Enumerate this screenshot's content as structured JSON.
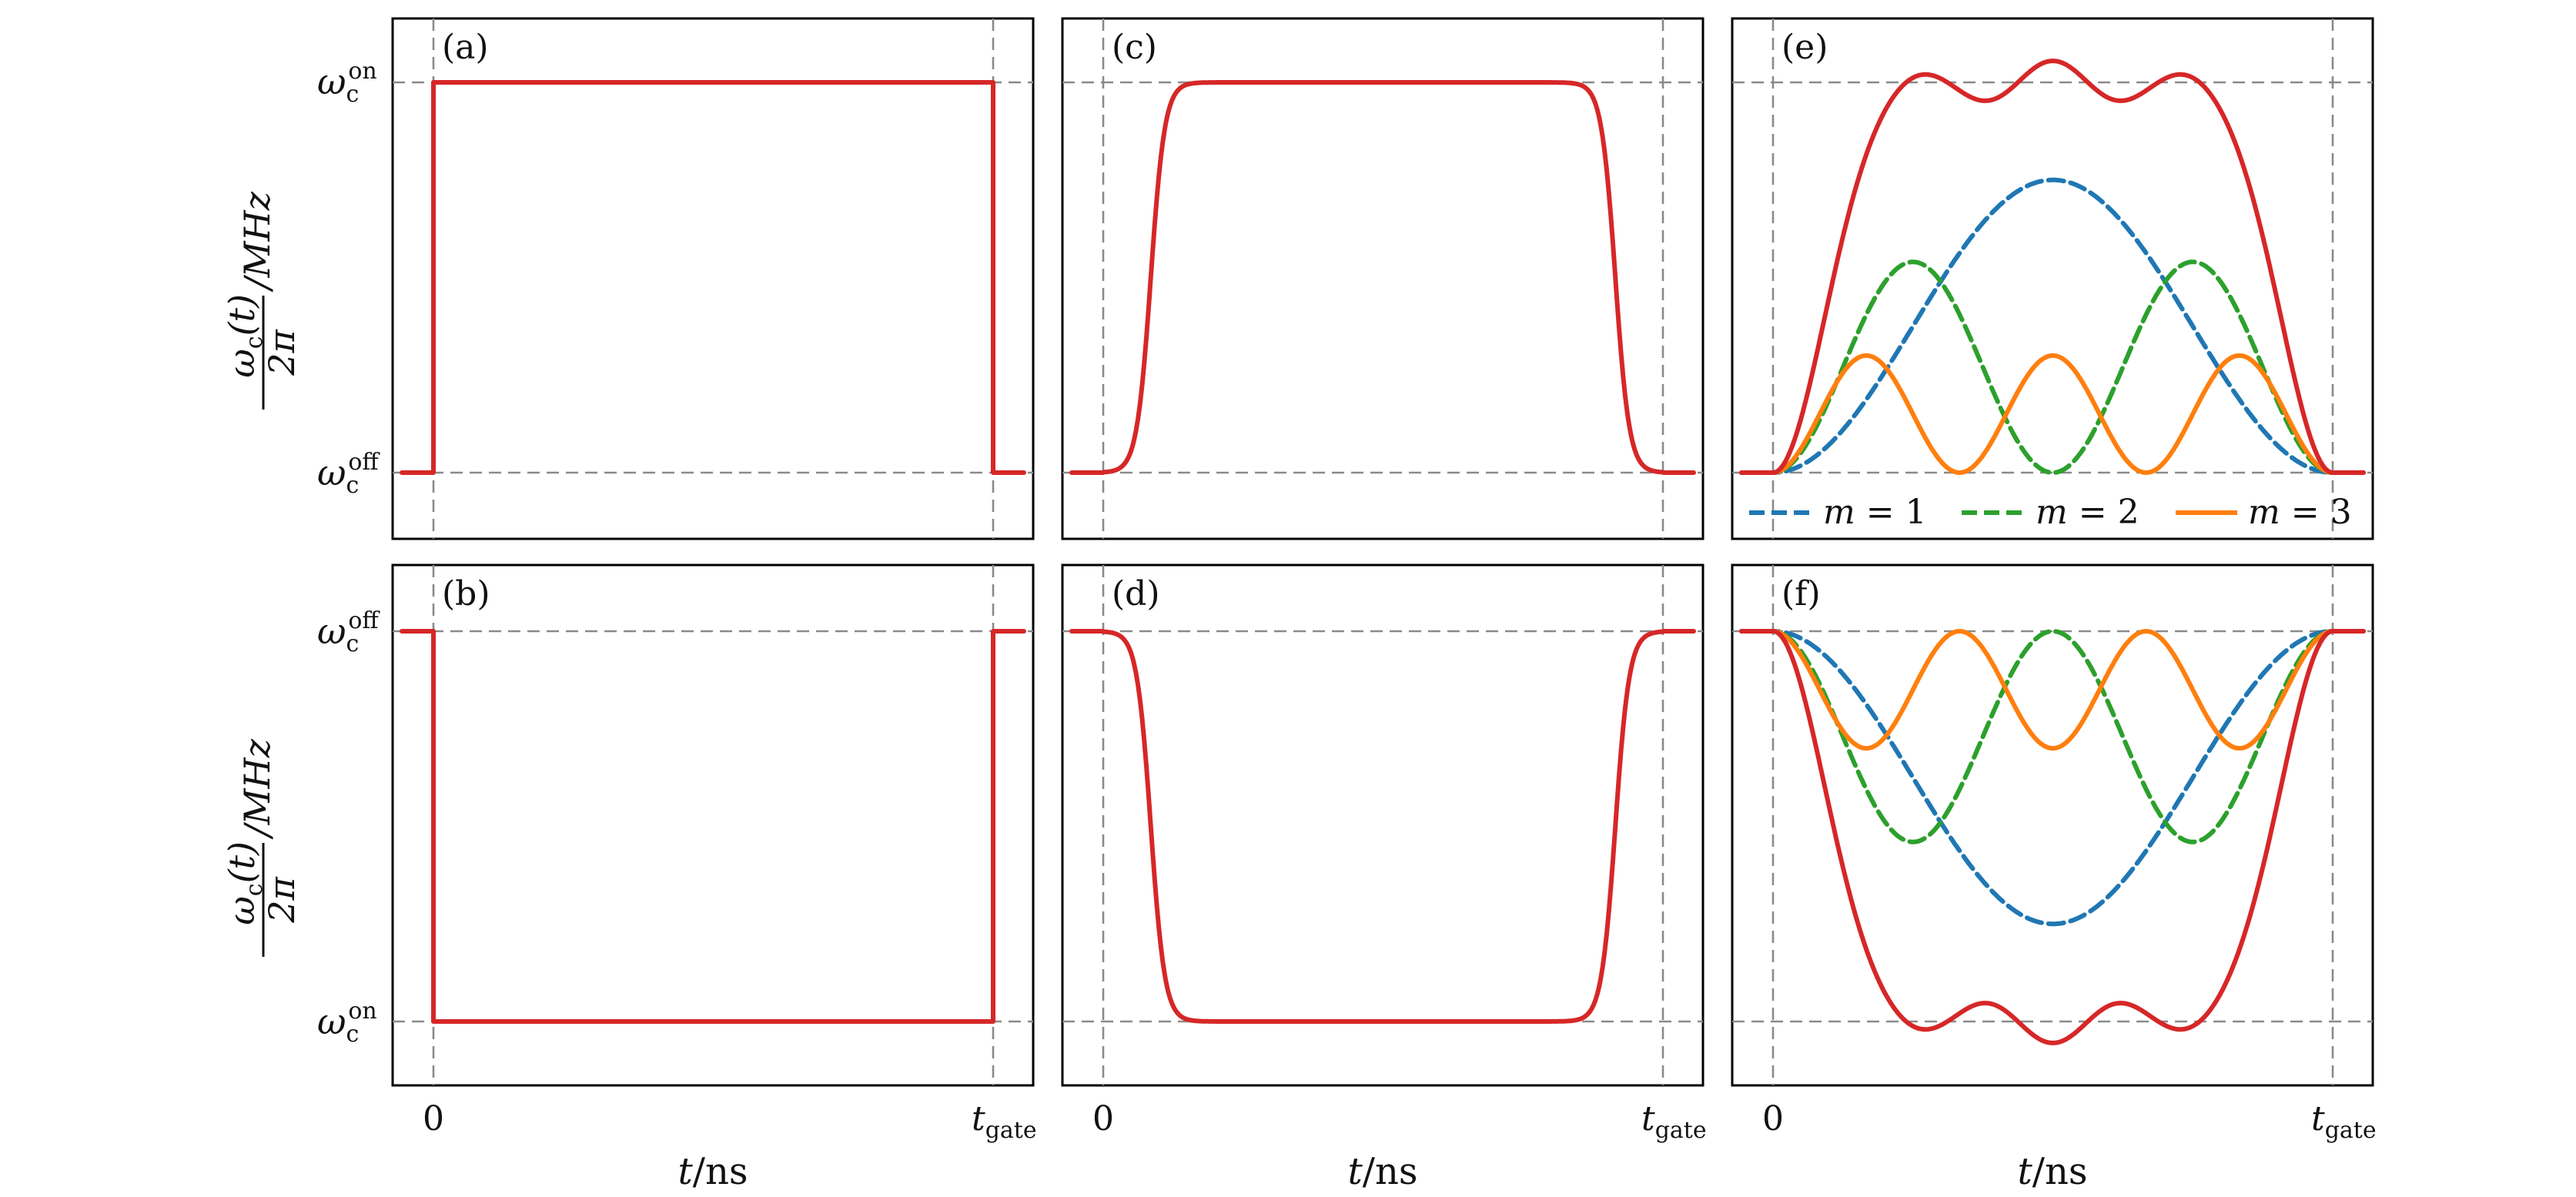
{
  "colors": {
    "pulse": "#d62728",
    "m1": "#1f77b4",
    "m2": "#2ca02c",
    "m3": "#ff7f0e",
    "guide": "#8a8a8a"
  },
  "chart_data": [
    {
      "panel": "(a)",
      "type": "line",
      "shape": "square pulse (step up at 0, step down at t_gate)",
      "y_ticks": [
        "ωc^on",
        "ωc^off"
      ],
      "top_tick": {
        "symbol": "ω",
        "sub": "c",
        "sup": "on"
      },
      "bottom_tick": {
        "symbol": "ω",
        "sub": "c",
        "sup": "off"
      },
      "x_ticks": [
        "0",
        "t_gate"
      ],
      "series": [
        {
          "values": "off before 0, on between 0 and t_gate, off after t_gate"
        }
      ]
    },
    {
      "panel": "(b)",
      "type": "line",
      "shape": "inverted square pulse (step down at 0, step up at t_gate)",
      "top_tick": {
        "symbol": "ω",
        "sub": "c",
        "sup": "off"
      },
      "bottom_tick": {
        "symbol": "ω",
        "sub": "c",
        "sup": "on"
      },
      "x_ticks": [
        "0",
        "t_gate"
      ]
    },
    {
      "panel": "(c)",
      "type": "line",
      "shape": "smooth flat-top pulse rising from off to on",
      "top_tick": {
        "symbol": "ω",
        "sub": "c",
        "sup": "on"
      },
      "bottom_tick": {
        "symbol": "ω",
        "sub": "c",
        "sup": "off"
      },
      "x_ticks": [
        "0",
        "t_gate"
      ]
    },
    {
      "panel": "(d)",
      "type": "line",
      "shape": "smooth flat-bottom pulse falling from off to on",
      "top_tick": {
        "symbol": "ω",
        "sub": "c",
        "sup": "off"
      },
      "bottom_tick": {
        "symbol": "ω",
        "sub": "c",
        "sup": "on"
      },
      "x_ticks": [
        "0",
        "t_gate"
      ]
    },
    {
      "panel": "(e)",
      "type": "line",
      "shape": "Fourier-series pulse: total plus harmonic components",
      "top_tick": {
        "symbol": "ω",
        "sub": "c",
        "sup": "on"
      },
      "bottom_tick": {
        "symbol": "ω",
        "sub": "c",
        "sup": "off"
      },
      "x_ticks": [
        "0",
        "t_gate"
      ],
      "series": [
        {
          "name": "m = 1",
          "formula": "0.75·(1-cos 2πs)/2"
        },
        {
          "name": "m = 2",
          "formula": "0.54·(1-cos 4πs)/2"
        },
        {
          "name": "m = 3",
          "formula": "0.30·(1-cos 6πs)/2"
        },
        {
          "formula": "total pulse, overshoots to ~1.06 at s≈0.25, 0.5, 0.75"
        }
      ]
    },
    {
      "panel": "(f)",
      "type": "line",
      "shape": "mirror of (e): pulse dips from off to on",
      "top_tick": {
        "symbol": "ω",
        "sub": "c",
        "sup": "off"
      },
      "bottom_tick": {
        "symbol": "ω",
        "sub": "c",
        "sup": "on"
      },
      "x_ticks": [
        "0",
        "t_gate"
      ]
    }
  ],
  "panels": {
    "a": {
      "label": "(a)"
    },
    "b": {
      "label": "(b)"
    },
    "c": {
      "label": "(c)"
    },
    "d": {
      "label": "(d)"
    },
    "e": {
      "label": "(e)"
    },
    "f": {
      "label": "(f)"
    }
  },
  "axes": {
    "ylabel_top": {
      "symbol": "ω",
      "sub": "c",
      "arg": "(t)",
      "den": "2π",
      "unit": "/MHz"
    },
    "ylabel_bottom": {
      "symbol": "ω",
      "sub": "c",
      "arg": "(t)",
      "den": "2π",
      "unit": "/MHz"
    },
    "x_tick_zero": "0",
    "x_tick_gate": {
      "symbol": "t",
      "sub": "gate"
    },
    "xlabel": {
      "symbol": "t",
      "unit": "/ns"
    }
  },
  "legend": {
    "m1": {
      "var": "m",
      "eq": " = 1"
    },
    "m2": {
      "var": "m",
      "eq": " = 2"
    },
    "m3": {
      "var": "m",
      "eq": " = 3"
    }
  }
}
